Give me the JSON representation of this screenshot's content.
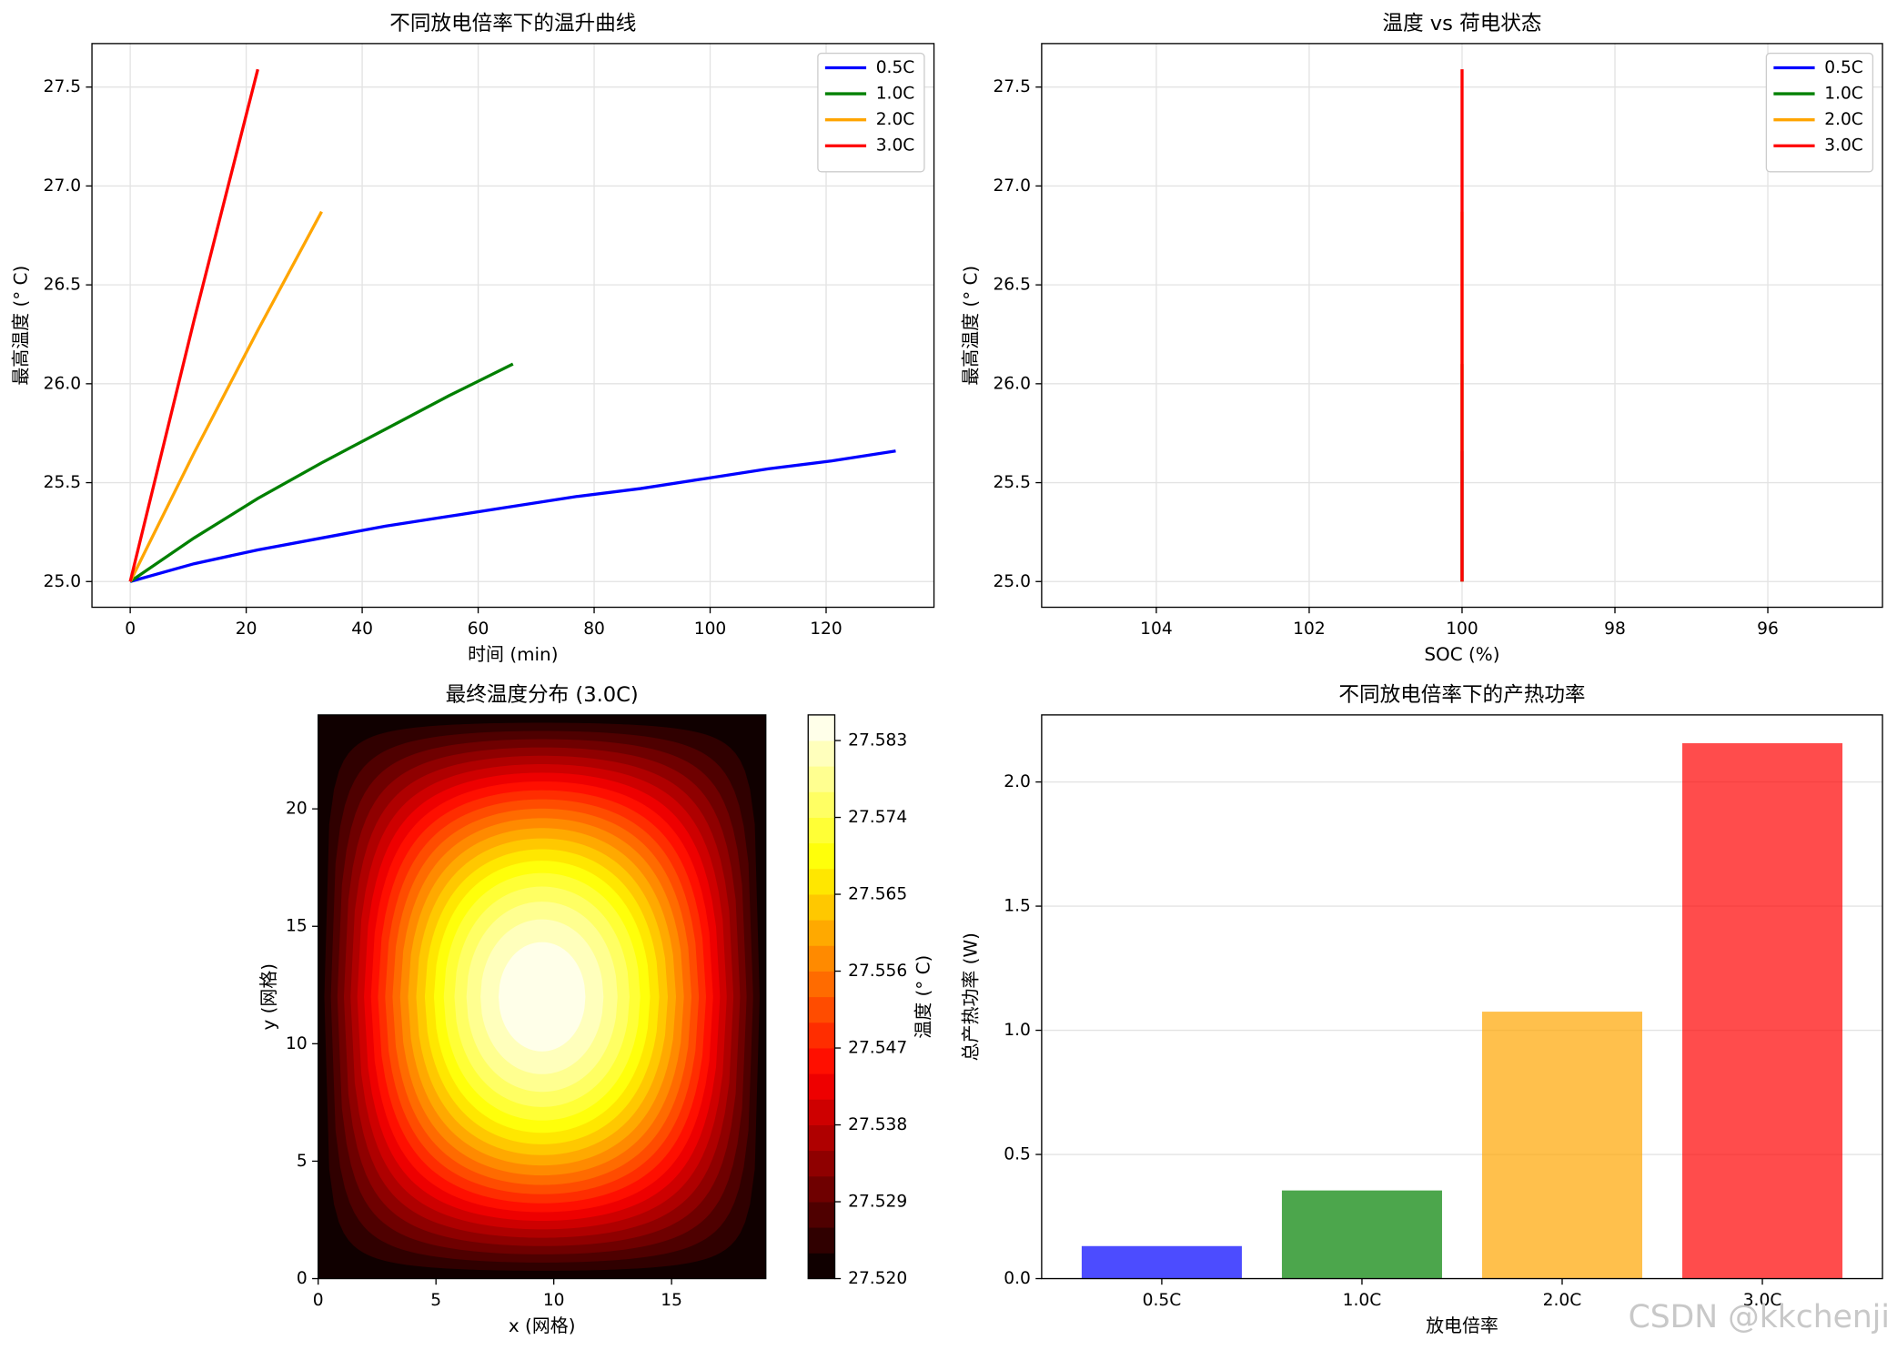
{
  "chart_data": [
    {
      "type": "line",
      "title": "不同放电倍率下的温升曲线",
      "xlabel": "时间 (min)",
      "ylabel": "最高温度 (° C)",
      "xlim": [
        -6.6,
        138.6
      ],
      "xticks": [
        0,
        20,
        40,
        60,
        80,
        100,
        120
      ],
      "ylim": [
        24.87,
        27.72
      ],
      "yticks": [
        {
          "value": 25,
          "label": "25.0"
        },
        25.5,
        {
          "value": 26,
          "label": "26.0"
        },
        26.5,
        {
          "value": 27,
          "label": "27.0"
        },
        27.5
      ],
      "grid": "both",
      "legend": "upper right",
      "series": [
        {
          "name": "0.5C",
          "color": "#0000ff",
          "x": [
            0,
            11,
            22,
            33,
            44,
            55,
            66,
            77,
            88,
            99,
            110,
            121,
            132
          ],
          "values": [
            25,
            25.09,
            25.16,
            25.22,
            25.28,
            25.33,
            25.38,
            25.43,
            25.47,
            25.52,
            25.57,
            25.61,
            25.66
          ]
        },
        {
          "name": "1.0C",
          "color": "#008000",
          "x": [
            0,
            11,
            22,
            33,
            44,
            55,
            66
          ],
          "values": [
            25,
            25.22,
            25.42,
            25.6,
            25.77,
            25.94,
            26.1
          ]
        },
        {
          "name": "2.0C",
          "color": "#ffa500",
          "x": [
            0,
            11,
            22,
            33
          ],
          "values": [
            25,
            25.65,
            26.27,
            26.87
          ]
        },
        {
          "name": "3.0C",
          "color": "#ff0000",
          "x": [
            0,
            11,
            22
          ],
          "values": [
            25,
            26.32,
            27.59
          ]
        }
      ]
    },
    {
      "type": "line",
      "title": "温度 vs 荷电状态",
      "xlabel": "SOC (%)",
      "ylabel": "最高温度 (° C)",
      "xlim": [
        105.5,
        94.5
      ],
      "xticks": [
        104,
        102,
        100,
        98,
        96
      ],
      "ylim": [
        24.87,
        27.72
      ],
      "yticks": [
        {
          "value": 25,
          "label": "25.0"
        },
        25.5,
        {
          "value": 26,
          "label": "26.0"
        },
        26.5,
        {
          "value": 27,
          "label": "27.0"
        },
        27.5
      ],
      "grid": "both",
      "legend": "upper right",
      "series": [
        {
          "name": "0.5C",
          "color": "#0000ff",
          "x": [
            100,
            100
          ],
          "values": [
            25,
            25.66
          ]
        },
        {
          "name": "1.0C",
          "color": "#008000",
          "x": [
            100,
            100
          ],
          "values": [
            25,
            26.1
          ]
        },
        {
          "name": "2.0C",
          "color": "#ffa500",
          "x": [
            100,
            100
          ],
          "values": [
            25,
            26.87
          ]
        },
        {
          "name": "3.0C",
          "color": "#ff0000",
          "x": [
            100,
            100
          ],
          "values": [
            25,
            27.59
          ]
        }
      ]
    },
    {
      "type": "contour",
      "title": "最终温度分布 (3.0C)",
      "xlabel": "x (网格)",
      "ylabel": "y (网格)",
      "xlim": [
        0,
        19
      ],
      "xticks": [
        0,
        5,
        10,
        15
      ],
      "ylim": [
        0,
        24
      ],
      "yticks": [
        0,
        5,
        10,
        15,
        20
      ],
      "colormap": "hot",
      "levels": [
        27.52,
        27.523,
        27.526,
        27.529,
        27.532,
        27.535,
        27.538,
        27.541,
        27.544,
        27.547,
        27.55,
        27.553,
        27.556,
        27.559,
        27.562,
        27.565,
        27.568,
        27.571,
        27.574,
        27.577,
        27.58,
        27.583,
        27.586
      ],
      "colorbar_label": "温度 (° C)",
      "colorbar_ticks": [
        {
          "value": 27.52,
          "label": "27.520"
        },
        27.529,
        27.538,
        27.547,
        27.556,
        27.565,
        27.574,
        27.583
      ]
    },
    {
      "type": "bar",
      "title": "不同放电倍率下的产热功率",
      "xlabel": "放电倍率",
      "ylabel": "总产热功率 (W)",
      "categories": [
        "0.5C",
        "1.0C",
        "2.0C",
        "3.0C"
      ],
      "values": [
        0.131,
        0.355,
        1.075,
        2.156
      ],
      "colors": [
        "#0000ff",
        "#008000",
        "#ffa500",
        "#ff0000"
      ],
      "opacity": 0.7,
      "ylim": [
        0,
        2.27
      ],
      "yticks": [
        {
          "value": 0,
          "label": "0.0"
        },
        0.5,
        {
          "value": 1,
          "label": "1.0"
        },
        1.5,
        {
          "value": 2,
          "label": "2.0"
        }
      ],
      "grid": "y"
    }
  ],
  "watermark": "CSDN @kkchenji"
}
